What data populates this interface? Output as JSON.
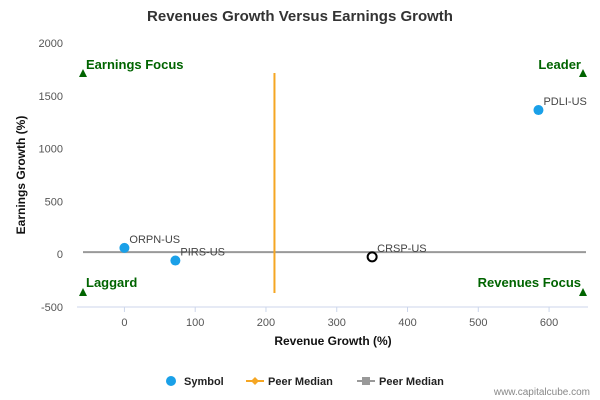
{
  "chart_data": {
    "type": "scatter",
    "title": "Revenues Growth Versus Earnings Growth",
    "xlabel": "Revenue Growth (%)",
    "ylabel": "Earnings Growth (%)",
    "xlim": [
      -67,
      655
    ],
    "ylim": [
      -500,
      2000
    ],
    "x_ticks": [
      0,
      100,
      200,
      300,
      400,
      500,
      600
    ],
    "y_ticks": [
      -500,
      0,
      500,
      1000,
      1500,
      2000
    ],
    "points": [
      {
        "label": "ORPN-US",
        "x": 0,
        "y": 60,
        "style": "filled"
      },
      {
        "label": "PIRS-US",
        "x": 72,
        "y": -60,
        "style": "filled"
      },
      {
        "label": "PDLI-US",
        "x": 585,
        "y": 1365,
        "style": "filled"
      },
      {
        "label": "CRSP-US",
        "x": 350,
        "y": -25,
        "style": "hollow"
      }
    ],
    "peer_median_x": 212,
    "peer_median_y": 20,
    "quadrants": {
      "top_left": "Earnings Focus",
      "top_right": "Leader",
      "bottom_left": "Laggard",
      "bottom_right": "Revenues Focus"
    },
    "legend": [
      {
        "label": "Symbol",
        "marker": "circle"
      },
      {
        "label": "Peer Median",
        "marker": "diamond-line"
      },
      {
        "label": "Peer Median",
        "marker": "square-line"
      }
    ],
    "colors": {
      "points": "#1aa0e8",
      "median_x": "#f5a623",
      "median_y": "#999999",
      "quadrant": "#006400",
      "hollow": "#000000"
    },
    "legend_position": "bottom",
    "grid": false
  },
  "watermark": "www.capitalcube.com"
}
